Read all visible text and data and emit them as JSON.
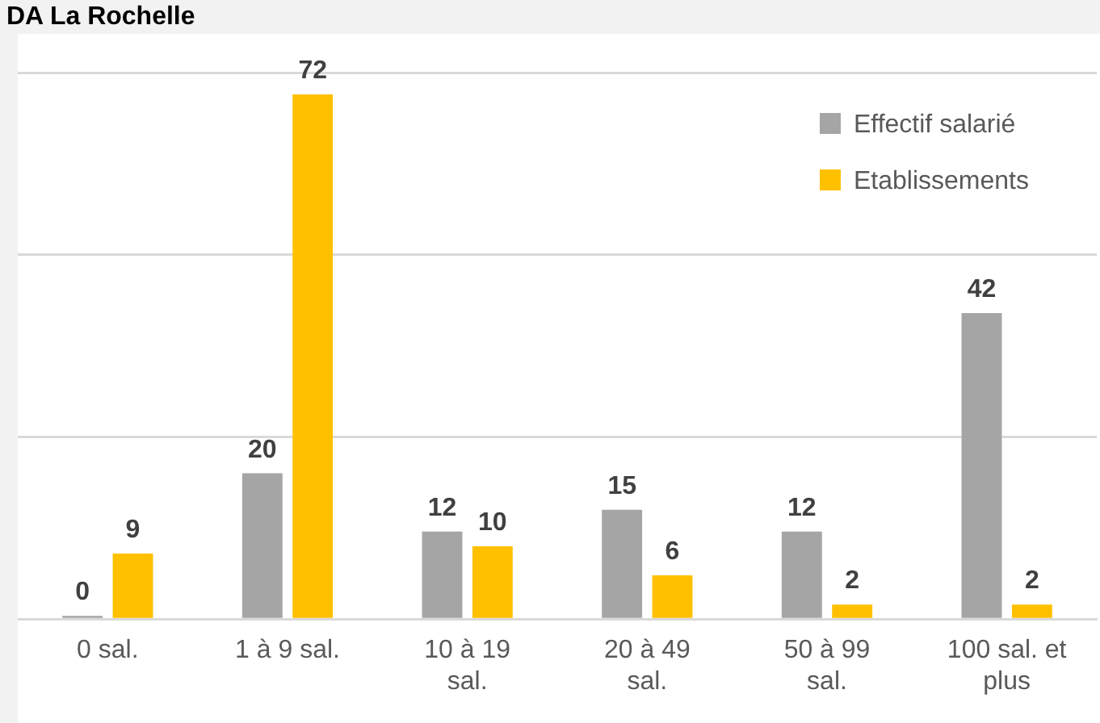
{
  "chart_data": {
    "type": "bar",
    "title": "DA La Rochelle",
    "categories": [
      "0 sal.",
      "1 à 9 sal.",
      "10 à 19 sal.",
      "20 à 49 sal.",
      "50 à 99 sal.",
      "100 sal. et plus"
    ],
    "series": [
      {
        "name": "Effectif salarié",
        "color": "#a5a5a5",
        "values": [
          0,
          20,
          12,
          15,
          12,
          42
        ]
      },
      {
        "name": "Etablissements",
        "color": "#ffc000",
        "values": [
          9,
          72,
          10,
          6,
          2,
          2
        ]
      }
    ],
    "ylim": [
      0,
      75
    ],
    "yticks": [
      {
        "value": 0,
        "label": null
      },
      {
        "value": 25,
        "label": null
      },
      {
        "value": 50,
        "label": null
      },
      {
        "value": 75,
        "label": null
      }
    ],
    "grid": "y",
    "legend": "top right",
    "tick_labels": "x",
    "data_labels": true
  }
}
